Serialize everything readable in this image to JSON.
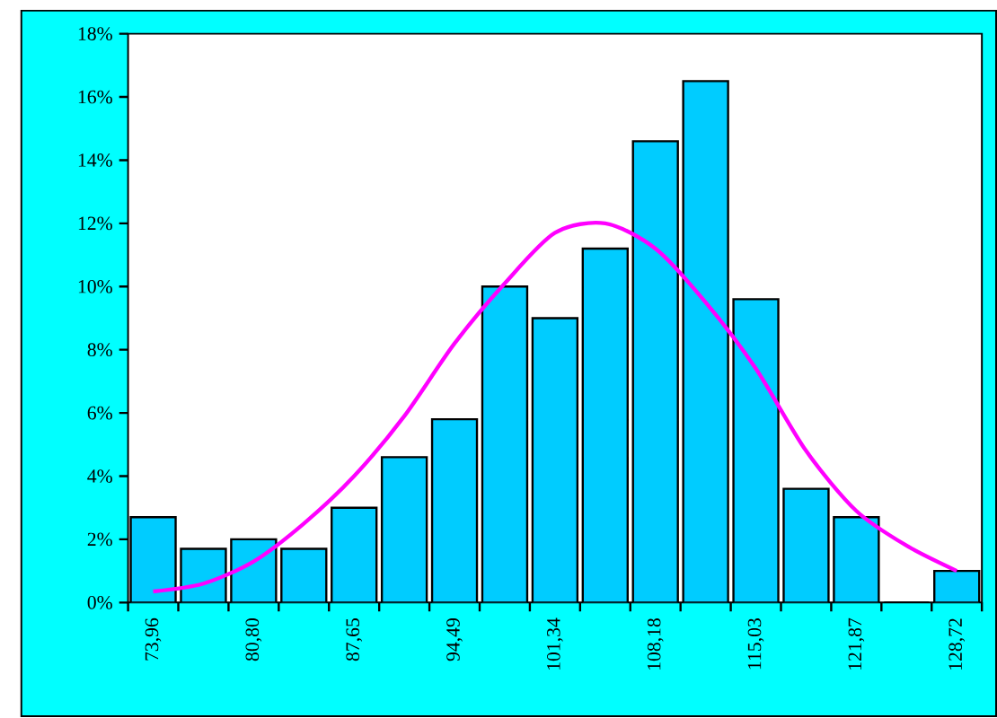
{
  "chart_data": {
    "type": "bar",
    "categories": [
      "73,96",
      null,
      "80,80",
      null,
      "87,65",
      null,
      "94,49",
      null,
      "101,34",
      null,
      "108,18",
      null,
      "115,03",
      null,
      "121,87",
      null,
      "128,72"
    ],
    "series": [
      {
        "color": "#00ccff",
        "values": [
          2.7,
          1.7,
          2.0,
          1.7,
          3.0,
          4.6,
          5.8,
          10.0,
          9.0,
          11.2,
          14.6,
          16.5,
          9.6,
          3.6,
          2.7,
          0,
          1.0
        ]
      },
      {
        "type": "line",
        "color": "#ff00ff",
        "values": [
          0.35,
          0.6,
          1.3,
          2.5,
          4.0,
          5.9,
          8.2,
          10.1,
          11.7,
          12.0,
          11.2,
          9.5,
          7.4,
          4.8,
          2.9,
          1.8,
          1.0
        ]
      }
    ],
    "ylim": [
      0,
      18
    ],
    "yticks": [
      {
        "value": 0,
        "label": "0%"
      },
      {
        "value": 2,
        "label": "2%"
      },
      {
        "value": 4,
        "label": "4%"
      },
      {
        "value": 6,
        "label": "6%"
      },
      {
        "value": 8,
        "label": "8%"
      },
      {
        "value": 10,
        "label": "10%"
      },
      {
        "value": 12,
        "label": "12%"
      },
      {
        "value": 14,
        "label": "14%"
      },
      {
        "value": 16,
        "label": "16%"
      },
      {
        "value": 18,
        "label": "18%"
      }
    ],
    "grid": false,
    "marker": "none",
    "line_style": "solid"
  }
}
